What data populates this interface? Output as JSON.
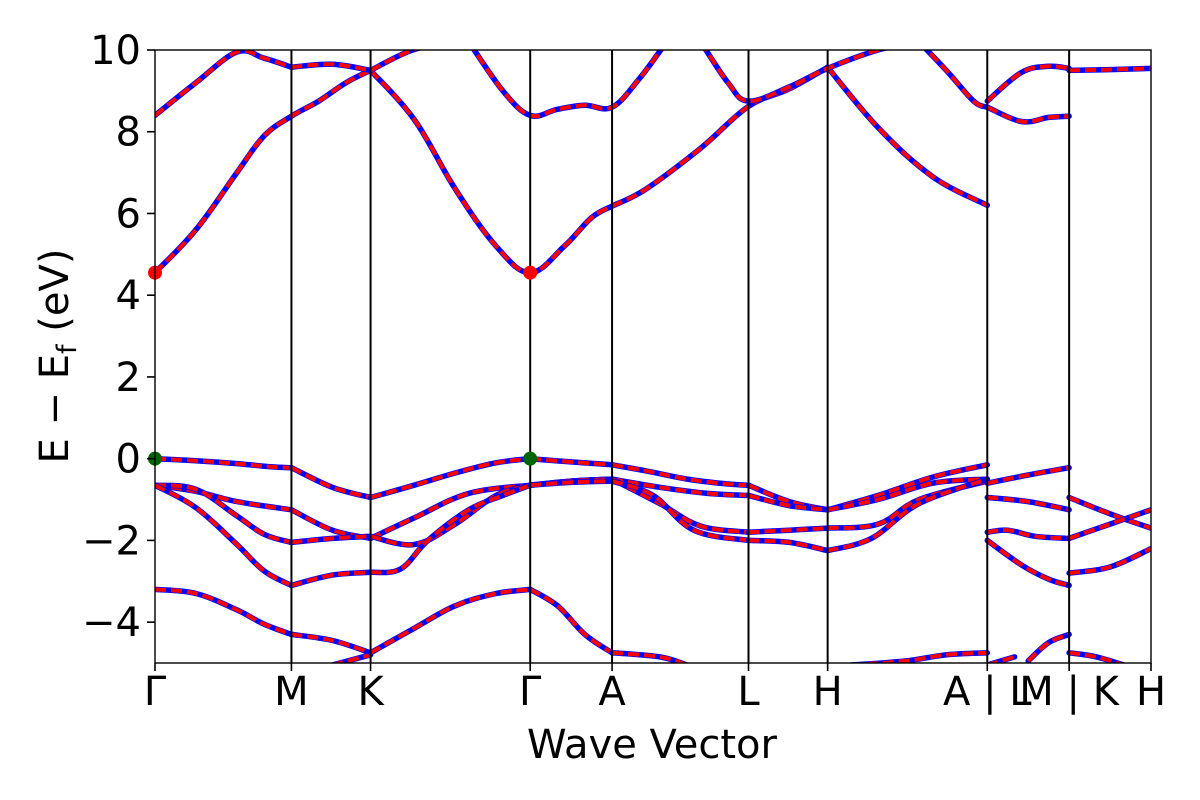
{
  "chart_data": {
    "type": "line",
    "title": "",
    "xlabel": "Wave Vector",
    "ylabel": "E − E_f (eV)",
    "ylabel_main": "E  −  E",
    "ylabel_sub": "f",
    "ylabel_tail": " (eV)",
    "xlim": [
      0,
      7.3
    ],
    "ylim": [
      -5,
      10
    ],
    "yticks": [
      -4,
      -2,
      0,
      2,
      4,
      6,
      8,
      10
    ],
    "ytick_labels": [
      "−4",
      "−2",
      "0",
      "2",
      "4",
      "6",
      "8",
      "10"
    ],
    "kpoints": [
      {
        "label": "Γ",
        "x": 0.0
      },
      {
        "label": "M",
        "x": 1.0
      },
      {
        "label": "K",
        "x": 1.58
      },
      {
        "label": "Γ",
        "x": 2.75
      },
      {
        "label": "A",
        "x": 3.35
      },
      {
        "label": "L",
        "x": 4.35
      },
      {
        "label": "H",
        "x": 4.93
      },
      {
        "label": "A | L",
        "x": 6.1
      },
      {
        "label": "M | K",
        "x": 6.7
      },
      {
        "label": "H",
        "x": 7.3
      }
    ],
    "segment_breaks": [
      6.1,
      6.7
    ],
    "line_colors": {
      "primary": "#0000ff",
      "overlay": "#ff0000"
    },
    "markers": [
      {
        "x": 0.0,
        "y": 4.55,
        "color": "#ff0000",
        "kind": "cbm"
      },
      {
        "x": 2.75,
        "y": 4.55,
        "color": "#ff0000",
        "kind": "cbm"
      },
      {
        "x": 0.0,
        "y": 0.0,
        "color": "#006400",
        "kind": "vbm"
      },
      {
        "x": 2.75,
        "y": 0.0,
        "color": "#006400",
        "kind": "vbm"
      }
    ],
    "series": [
      {
        "x": [
          0.0,
          0.3,
          0.6,
          0.8,
          1.0,
          1.2,
          1.4,
          1.58
        ],
        "y": [
          4.55,
          5.6,
          7.0,
          7.9,
          8.38,
          8.75,
          9.2,
          9.5
        ]
      },
      {
        "x": [
          1.58,
          1.9,
          2.2,
          2.5,
          2.75,
          3.0,
          3.2,
          3.35
        ],
        "y": [
          9.5,
          8.3,
          6.6,
          5.2,
          4.55,
          5.2,
          5.9,
          6.18
        ]
      },
      {
        "x": [
          3.35,
          3.6,
          4.0,
          4.35,
          4.65,
          4.93
        ],
        "y": [
          6.18,
          6.6,
          7.6,
          8.62,
          9.05,
          9.58
        ]
      },
      {
        "x": [
          4.93,
          5.3,
          5.7,
          6.1
        ],
        "y": [
          9.58,
          8.1,
          6.9,
          6.2
        ]
      },
      {
        "x": [
          0.0,
          0.3,
          0.6,
          0.8,
          1.0
        ],
        "y": [
          8.4,
          9.2,
          9.95,
          9.8,
          9.58
        ]
      },
      {
        "x": [
          1.0,
          1.3,
          1.58
        ],
        "y": [
          9.58,
          9.65,
          9.5
        ]
      },
      {
        "x": [
          1.58,
          1.85,
          2.1
        ],
        "y": [
          9.5,
          9.95,
          10.2
        ]
      },
      {
        "x": [
          2.3,
          2.55,
          2.75,
          2.95,
          3.15,
          3.35,
          3.55,
          3.75
        ],
        "y": [
          10.2,
          9.0,
          8.4,
          8.55,
          8.65,
          8.6,
          9.3,
          10.2
        ]
      },
      {
        "x": [
          4.0,
          4.2,
          4.35,
          4.65,
          4.93,
          5.3,
          5.6
        ],
        "y": [
          10.2,
          9.2,
          8.75,
          9.1,
          9.55,
          10.0,
          10.2
        ]
      },
      {
        "x": [
          5.6,
          5.8,
          6.0,
          6.1
        ],
        "y": [
          10.2,
          9.5,
          8.75,
          8.6
        ]
      },
      {
        "x": [
          6.1,
          6.35,
          6.55,
          6.7
        ],
        "y": [
          8.75,
          9.45,
          9.6,
          9.55
        ]
      },
      {
        "x": [
          6.1,
          6.35,
          6.55,
          6.7
        ],
        "y": [
          8.6,
          8.25,
          8.35,
          8.38
        ]
      },
      {
        "x": [
          6.7,
          7.0,
          7.3
        ],
        "y": [
          9.5,
          9.52,
          9.55
        ]
      },
      {
        "x": [
          0.0,
          0.3,
          0.6,
          0.85,
          1.0
        ],
        "y": [
          0.0,
          -0.05,
          -0.12,
          -0.2,
          -0.22
        ]
      },
      {
        "x": [
          1.0,
          1.3,
          1.58
        ],
        "y": [
          -0.22,
          -0.7,
          -0.95
        ]
      },
      {
        "x": [
          1.58,
          1.9,
          2.2,
          2.5,
          2.75
        ],
        "y": [
          -0.95,
          -0.65,
          -0.35,
          -0.1,
          0.0
        ]
      },
      {
        "x": [
          2.75,
          3.05,
          3.35
        ],
        "y": [
          0.0,
          -0.08,
          -0.15
        ]
      },
      {
        "x": [
          3.35,
          3.6,
          3.9,
          4.2,
          4.35
        ],
        "y": [
          -0.15,
          -0.3,
          -0.5,
          -0.62,
          -0.65
        ]
      },
      {
        "x": [
          4.35,
          4.65,
          4.93
        ],
        "y": [
          -0.65,
          -1.05,
          -1.25
        ]
      },
      {
        "x": [
          4.93,
          5.3,
          5.7,
          6.1
        ],
        "y": [
          -1.25,
          -0.9,
          -0.45,
          -0.15
        ]
      },
      {
        "x": [
          0.0,
          0.3,
          0.6,
          1.0
        ],
        "y": [
          -0.65,
          -0.8,
          -1.05,
          -1.25
        ]
      },
      {
        "x": [
          1.0,
          1.3,
          1.58
        ],
        "y": [
          -1.25,
          -1.75,
          -1.95
        ]
      },
      {
        "x": [
          1.58,
          1.9,
          2.3,
          2.75
        ],
        "y": [
          -1.95,
          -1.45,
          -0.85,
          -0.65
        ]
      },
      {
        "x": [
          2.75,
          3.05,
          3.35
        ],
        "y": [
          -0.65,
          -0.55,
          -0.5
        ]
      },
      {
        "x": [
          3.35,
          3.7,
          4.05,
          4.35
        ],
        "y": [
          -0.5,
          -0.7,
          -0.85,
          -0.9
        ]
      },
      {
        "x": [
          4.35,
          4.65,
          4.93
        ],
        "y": [
          -0.9,
          -1.15,
          -1.25
        ]
      },
      {
        "x": [
          4.93,
          5.3,
          5.7,
          6.1
        ],
        "y": [
          -1.25,
          -1.0,
          -0.6,
          -0.5
        ]
      },
      {
        "x": [
          0.0,
          0.3,
          0.6,
          0.8,
          1.0
        ],
        "y": [
          -0.65,
          -0.75,
          -1.4,
          -1.85,
          -2.05
        ]
      },
      {
        "x": [
          1.0,
          1.3,
          1.58
        ],
        "y": [
          -2.05,
          -1.95,
          -1.9
        ]
      },
      {
        "x": [
          1.58,
          1.9,
          2.2,
          2.5,
          2.75
        ],
        "y": [
          -1.9,
          -2.1,
          -1.6,
          -0.9,
          -0.65
        ]
      },
      {
        "x": [
          2.75,
          3.05,
          3.35
        ],
        "y": [
          -0.65,
          -0.55,
          -0.5
        ]
      },
      {
        "x": [
          3.35,
          3.7,
          4.0,
          4.35
        ],
        "y": [
          -0.5,
          -1.1,
          -1.65,
          -1.8
        ]
      },
      {
        "x": [
          4.35,
          4.65,
          4.93
        ],
        "y": [
          -1.8,
          -1.75,
          -1.7
        ]
      },
      {
        "x": [
          4.93,
          5.3,
          5.6,
          6.1
        ],
        "y": [
          -1.7,
          -1.6,
          -1.0,
          -0.55
        ]
      },
      {
        "x": [
          0.0,
          0.3,
          0.6,
          0.8,
          1.0
        ],
        "y": [
          -0.65,
          -1.2,
          -2.1,
          -2.75,
          -3.1
        ]
      },
      {
        "x": [
          1.0,
          1.3,
          1.58
        ],
        "y": [
          -3.1,
          -2.85,
          -2.78
        ]
      },
      {
        "x": [
          1.58,
          1.8,
          2.0,
          2.3,
          2.55,
          2.75
        ],
        "y": [
          -2.78,
          -2.7,
          -2.0,
          -1.25,
          -0.9,
          -0.65
        ]
      },
      {
        "x": [
          2.75,
          3.05,
          3.35
        ],
        "y": [
          -0.65,
          -0.58,
          -0.55
        ]
      },
      {
        "x": [
          3.35,
          3.65,
          3.95,
          4.35
        ],
        "y": [
          -0.55,
          -0.9,
          -1.75,
          -2.0
        ]
      },
      {
        "x": [
          4.35,
          4.65,
          4.93
        ],
        "y": [
          -2.0,
          -2.05,
          -2.25
        ]
      },
      {
        "x": [
          4.93,
          5.25,
          5.6,
          6.1
        ],
        "y": [
          -2.25,
          -1.95,
          -1.1,
          -0.5
        ]
      },
      {
        "x": [
          6.1,
          6.4,
          6.7
        ],
        "y": [
          -0.6,
          -0.4,
          -0.22
        ]
      },
      {
        "x": [
          6.1,
          6.4,
          6.7
        ],
        "y": [
          -0.95,
          -1.05,
          -1.25
        ]
      },
      {
        "x": [
          6.1,
          6.25,
          6.45,
          6.7
        ],
        "y": [
          -1.8,
          -1.75,
          -1.9,
          -1.95
        ]
      },
      {
        "x": [
          6.1,
          6.35,
          6.55,
          6.7
        ],
        "y": [
          -2.0,
          -2.6,
          -2.95,
          -3.1
        ]
      },
      {
        "x": [
          6.7,
          7.0,
          7.3
        ],
        "y": [
          -0.95,
          -1.35,
          -1.7
        ]
      },
      {
        "x": [
          6.7,
          7.0,
          7.3
        ],
        "y": [
          -1.95,
          -1.6,
          -1.25
        ]
      },
      {
        "x": [
          6.7,
          7.0,
          7.3
        ],
        "y": [
          -2.8,
          -2.65,
          -2.2
        ]
      },
      {
        "x": [
          0.0,
          0.3,
          0.6,
          0.8,
          1.0
        ],
        "y": [
          -3.2,
          -3.3,
          -3.7,
          -4.05,
          -4.3
        ]
      },
      {
        "x": [
          1.0,
          1.3,
          1.58
        ],
        "y": [
          -4.3,
          -4.45,
          -4.75
        ]
      },
      {
        "x": [
          1.3,
          1.58
        ],
        "y": [
          -5.05,
          -4.8
        ]
      },
      {
        "x": [
          1.58,
          1.9,
          2.2,
          2.5,
          2.75
        ],
        "y": [
          -4.75,
          -4.15,
          -3.6,
          -3.3,
          -3.2
        ]
      },
      {
        "x": [
          2.75,
          2.95,
          3.15,
          3.35
        ],
        "y": [
          -3.2,
          -3.6,
          -4.3,
          -4.75
        ]
      },
      {
        "x": [
          3.35,
          3.7,
          3.9
        ],
        "y": [
          -4.75,
          -4.85,
          -5.05
        ]
      },
      {
        "x": [
          5.1,
          5.5,
          5.8,
          6.1
        ],
        "y": [
          -5.05,
          -4.95,
          -4.8,
          -4.75
        ]
      },
      {
        "x": [
          6.1,
          6.3
        ],
        "y": [
          -5.05,
          -4.85
        ]
      },
      {
        "x": [
          6.4,
          6.55,
          6.7
        ],
        "y": [
          -4.95,
          -4.5,
          -4.3
        ]
      },
      {
        "x": [
          6.7,
          6.9,
          7.1
        ],
        "y": [
          -4.75,
          -4.85,
          -5.05
        ]
      }
    ]
  }
}
